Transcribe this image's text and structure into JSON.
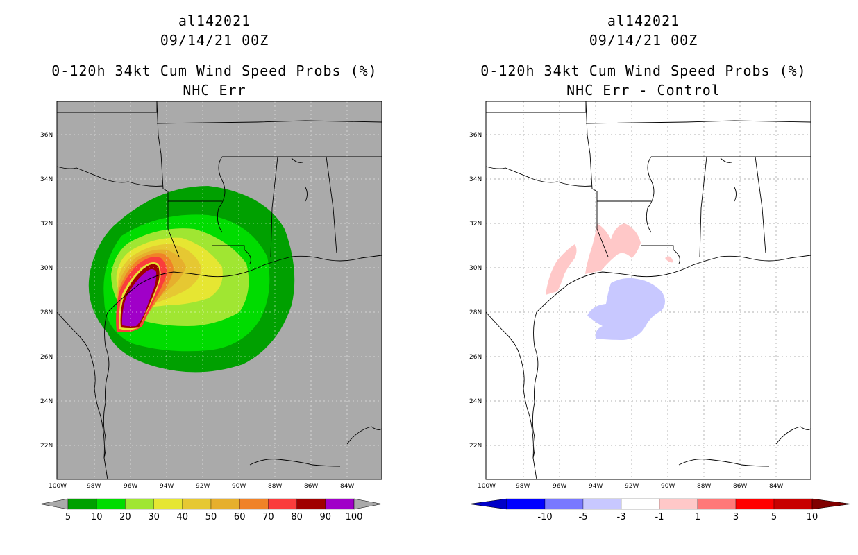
{
  "left": {
    "storm_id": "al142021",
    "datetime": "09/14/21 00Z",
    "product": "0-120h 34kt Cum Wind Speed Probs (%)",
    "subtitle": "NHC Err",
    "colorbar": {
      "labels": [
        "5",
        "10",
        "20",
        "30",
        "40",
        "50",
        "60",
        "70",
        "80",
        "90",
        "100"
      ],
      "colors": [
        "#00a000",
        "#00dc00",
        "#a0e632",
        "#e6e632",
        "#e6c832",
        "#e6af2d",
        "#f08228",
        "#fa3c3c",
        "#a00000",
        "#a000c8"
      ]
    }
  },
  "right": {
    "storm_id": "al142021",
    "datetime": "09/14/21 00Z",
    "product": "0-120h 34kt Cum Wind Speed Probs (%)",
    "subtitle": "NHC Err - Control",
    "colorbar": {
      "labels": [
        "-10",
        "-5",
        "-3",
        "-1",
        "1",
        "3",
        "5",
        "10"
      ],
      "colors": [
        "#0000c8",
        "#0000ff",
        "#7878ff",
        "#c8c8ff",
        "#ffffff",
        "#ffc8c8",
        "#ff7878",
        "#ff0000",
        "#c80000",
        "#800000"
      ]
    }
  },
  "lat_labels": [
    "36N",
    "34N",
    "32N",
    "30N",
    "28N",
    "26N",
    "24N",
    "22N"
  ],
  "lon_labels": [
    "100W",
    "98W",
    "96W",
    "94W",
    "92W",
    "90W",
    "88W",
    "86W",
    "84W"
  ],
  "colors": {
    "ocean_left": "#aaaaaa",
    "background": "#ffffff"
  }
}
